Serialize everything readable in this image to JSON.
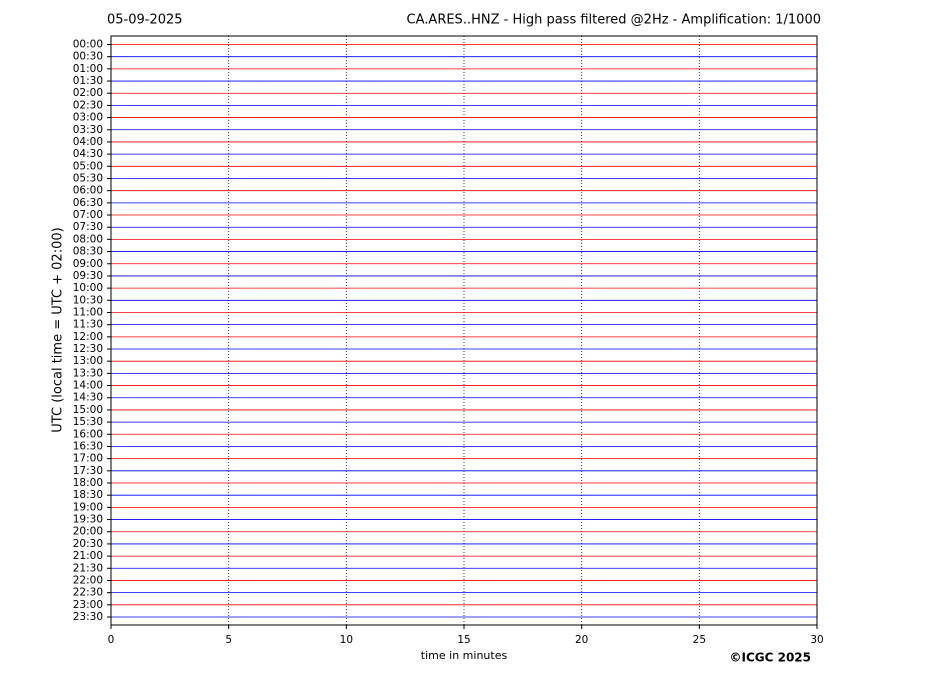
{
  "chart_data": {
    "type": "helicorder",
    "date": "05-09-2025",
    "title": "CA.ARES..HNZ - High pass filtered @2Hz - Amplification: 1/1000",
    "y_label": "UTC (local time = UTC + 02:00)",
    "x_label": "time in minutes",
    "copyright": "©ICGC 2025",
    "categories": [
      "00:00",
      "00:30",
      "01:00",
      "01:30",
      "02:00",
      "02:30",
      "03:00",
      "03:30",
      "04:00",
      "04:30",
      "05:00",
      "05:30",
      "06:00",
      "06:30",
      "07:00",
      "07:30",
      "08:00",
      "08:30",
      "09:00",
      "09:30",
      "10:00",
      "10:30",
      "11:00",
      "11:30",
      "12:00",
      "12:30",
      "13:00",
      "13:30",
      "14:00",
      "14:30",
      "15:00",
      "15:30",
      "16:00",
      "16:30",
      "17:00",
      "17:30",
      "18:00",
      "18:30",
      "19:00",
      "19:30",
      "20:00",
      "20:30",
      "21:00",
      "21:30",
      "22:00",
      "22:30",
      "23:00",
      "23:30"
    ],
    "colors": [
      "#ff0000",
      "#0000ff"
    ],
    "xlim": [
      0,
      30
    ],
    "xticks": [
      0,
      5,
      10,
      15,
      20,
      25,
      30
    ],
    "grid": true
  }
}
